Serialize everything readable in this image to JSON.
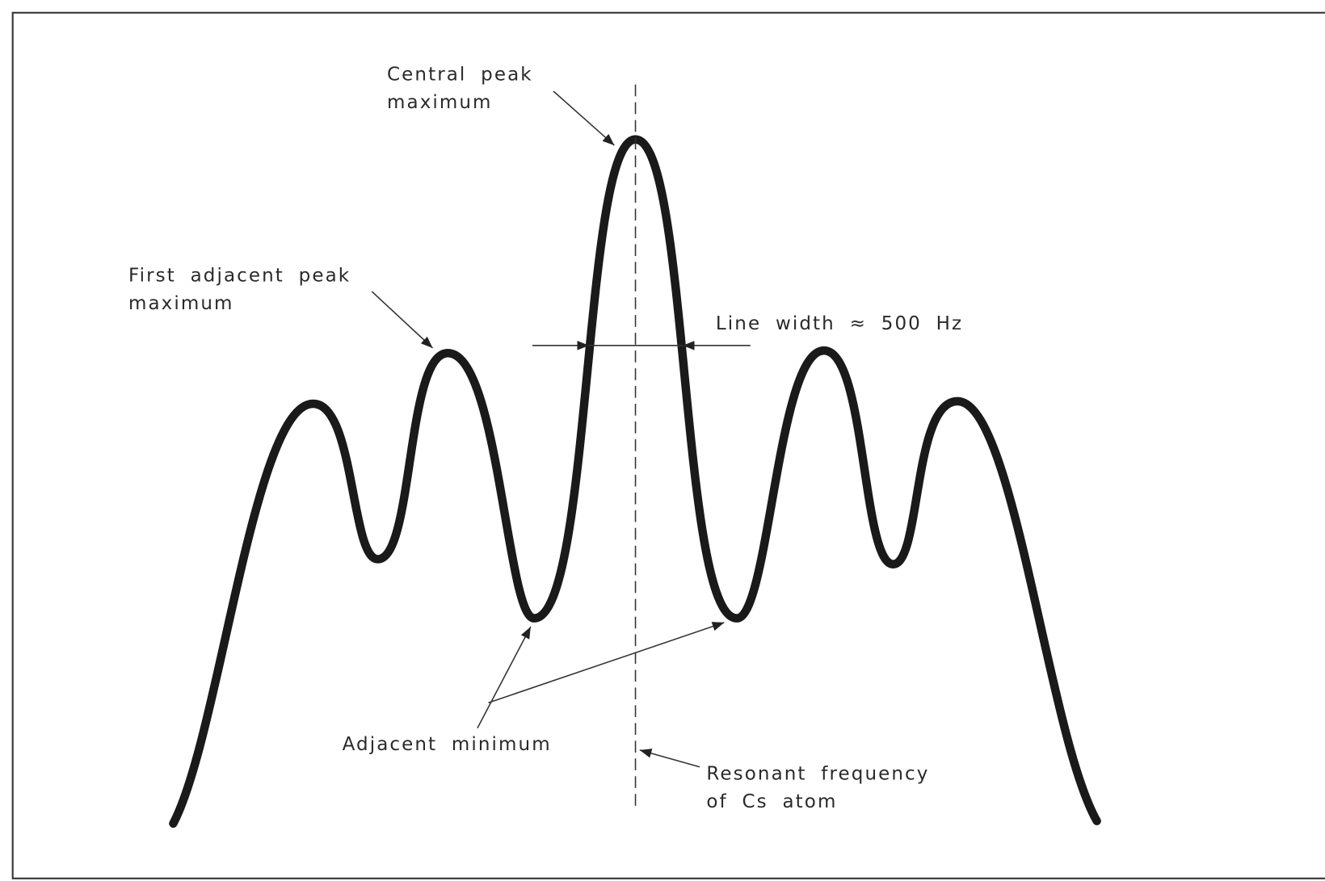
{
  "labels": {
    "central_peak": [
      "Central peak",
      "maximum"
    ],
    "first_adjacent_peak": [
      "First adjacent peak",
      "maximum"
    ],
    "line_width": "Line width ≈ 500 Hz",
    "adjacent_minimum": "Adjacent minimum",
    "resonant_frequency": [
      "Resonant frequency",
      "of Cs atom"
    ]
  }
}
